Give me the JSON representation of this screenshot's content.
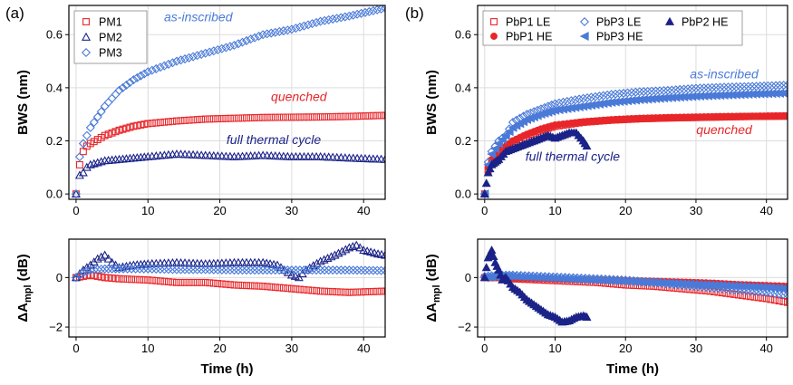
{
  "panels": {
    "a": {
      "label": "(a)"
    },
    "b": {
      "label": "(b)"
    }
  },
  "colors": {
    "red": "#e8262a",
    "navy": "#1b2388",
    "blue": "#4a7ad8",
    "lightblue": "#7aa2ea",
    "grid": "#dcdcdc"
  },
  "chart_data": [
    {
      "id": "a-top",
      "panel": "a",
      "type": "scatter",
      "title": "",
      "xlabel": "",
      "ylabel": "BWS (nm)",
      "xlim": [
        -1,
        43
      ],
      "ylim": [
        -0.02,
        0.71
      ],
      "xticks": [
        "0",
        "10",
        "20",
        "30",
        "40"
      ],
      "yticks": [
        "0.0",
        "0.2",
        "0.4",
        "0.6"
      ],
      "grid": true,
      "legend": {
        "position": "top-left",
        "entries": [
          "PM1",
          "PM2",
          "PM3"
        ]
      },
      "series": [
        {
          "name": "PM1",
          "color": "#e8262a",
          "marker": "square-open",
          "x": [
            0,
            0.5,
            1,
            1.5,
            2,
            4,
            6,
            8,
            10,
            14,
            18,
            22,
            26,
            30,
            34,
            38,
            43
          ],
          "y": [
            0.0,
            0.11,
            0.16,
            0.18,
            0.19,
            0.22,
            0.24,
            0.255,
            0.265,
            0.275,
            0.282,
            0.285,
            0.288,
            0.289,
            0.29,
            0.292,
            0.296
          ]
        },
        {
          "name": "PM2",
          "color": "#1b2388",
          "marker": "triangle-open",
          "x": [
            0,
            0.5,
            1,
            1.5,
            2,
            4,
            6,
            8,
            10,
            14,
            18,
            22,
            26,
            30,
            34,
            38,
            43
          ],
          "y": [
            0.0,
            0.07,
            0.08,
            0.1,
            0.11,
            0.125,
            0.13,
            0.135,
            0.14,
            0.15,
            0.145,
            0.14,
            0.145,
            0.14,
            0.14,
            0.135,
            0.13
          ]
        },
        {
          "name": "PM3",
          "color": "#4a7ad8",
          "marker": "diamond-open",
          "x": [
            0,
            0.5,
            1,
            1.5,
            2,
            4,
            6,
            8,
            10,
            14,
            18,
            22,
            26,
            30,
            34,
            38,
            43
          ],
          "y": [
            0.0,
            0.14,
            0.19,
            0.22,
            0.25,
            0.33,
            0.39,
            0.43,
            0.46,
            0.5,
            0.53,
            0.56,
            0.6,
            0.62,
            0.65,
            0.67,
            0.7
          ]
        }
      ],
      "annotations": [
        {
          "text": "as-inscribed",
          "x": 17,
          "y": 0.65,
          "color": "#4a7ad8"
        },
        {
          "text": "quenched",
          "x": 31,
          "y": 0.35,
          "color": "#e8262a"
        },
        {
          "text": "full thermal cycle",
          "x": 27.5,
          "y": 0.188,
          "color": "#1b2388"
        }
      ]
    },
    {
      "id": "a-bottom",
      "panel": "a",
      "type": "scatter",
      "title": "",
      "xlabel": "Time (h)",
      "ylabel": "ΔA",
      "ylabel_sub": "mpl",
      "ylabel_unit": " (dB)",
      "xlim": [
        -1,
        43
      ],
      "ylim": [
        -2.4,
        1.55
      ],
      "xticks": [
        "0",
        "10",
        "20",
        "30",
        "40"
      ],
      "yticks": [
        "−2",
        "0"
      ],
      "grid": true,
      "series": [
        {
          "name": "PM1",
          "color": "#e8262a",
          "marker": "square-open",
          "x": [
            0,
            1,
            2,
            4,
            6,
            10,
            14,
            18,
            22,
            26,
            30,
            34,
            38,
            43
          ],
          "y": [
            0.0,
            0.05,
            0.1,
            0.0,
            -0.05,
            -0.1,
            -0.2,
            -0.2,
            -0.3,
            -0.35,
            -0.45,
            -0.55,
            -0.6,
            -0.55
          ]
        },
        {
          "name": "PM2",
          "color": "#1b2388",
          "marker": "triangle-open",
          "x": [
            0,
            1,
            2,
            3,
            4,
            5,
            6,
            8,
            10,
            14,
            18,
            22,
            26,
            28,
            30,
            31,
            32,
            34,
            36,
            38,
            39,
            40,
            42,
            43
          ],
          "y": [
            0.0,
            0.3,
            0.5,
            0.75,
            0.9,
            0.6,
            0.4,
            0.5,
            0.55,
            0.6,
            0.55,
            0.6,
            0.6,
            0.5,
            0.1,
            0.0,
            0.3,
            0.65,
            0.9,
            1.2,
            1.3,
            1.1,
            0.95,
            0.9
          ]
        },
        {
          "name": "PM3",
          "color": "#4a7ad8",
          "marker": "diamond-open",
          "x": [
            0,
            1,
            2,
            4,
            6,
            10,
            14,
            18,
            22,
            26,
            30,
            34,
            38,
            43
          ],
          "y": [
            0.0,
            0.2,
            0.3,
            0.35,
            0.35,
            0.35,
            0.32,
            0.32,
            0.3,
            0.3,
            0.3,
            0.3,
            0.3,
            0.28
          ]
        }
      ]
    },
    {
      "id": "b-top",
      "panel": "b",
      "type": "scatter",
      "title": "",
      "xlabel": "",
      "ylabel": "BWS (nm)",
      "xlim": [
        -1,
        43
      ],
      "ylim": [
        -0.02,
        0.71
      ],
      "xticks": [
        "0",
        "10",
        "20",
        "30",
        "40"
      ],
      "yticks": [
        "0.0",
        "0.2",
        "0.4",
        "0.6"
      ],
      "grid": true,
      "legend": {
        "position": "top",
        "entries": [
          "PbP1 LE",
          "PbP3 LE",
          "PbP2 HE",
          "PbP1 HE",
          "PbP3 HE"
        ]
      },
      "series": [
        {
          "name": "PbP1 LE",
          "color": "#e8262a",
          "marker": "square-open",
          "x": [
            0,
            0.5,
            1,
            2,
            4,
            6,
            8,
            10,
            14,
            18,
            22,
            26,
            30,
            34,
            38,
            43
          ],
          "y": [
            0.0,
            0.09,
            0.12,
            0.15,
            0.19,
            0.22,
            0.24,
            0.255,
            0.27,
            0.278,
            0.283,
            0.286,
            0.288,
            0.29,
            0.292,
            0.293
          ]
        },
        {
          "name": "PbP1 HE",
          "color": "#e8262a",
          "marker": "circle-filled",
          "x": [
            0,
            0.5,
            1,
            2,
            4,
            6,
            8,
            10,
            14,
            18,
            22,
            26,
            30,
            34,
            38,
            43
          ],
          "y": [
            0.0,
            0.1,
            0.13,
            0.16,
            0.2,
            0.225,
            0.245,
            0.26,
            0.272,
            0.28,
            0.285,
            0.288,
            0.29,
            0.292,
            0.293,
            0.295
          ]
        },
        {
          "name": "PbP3 LE",
          "color": "#4a7ad8",
          "marker": "diamond-open",
          "x": [
            0,
            0.5,
            1,
            2,
            3,
            4,
            6,
            8,
            10,
            14,
            18,
            22,
            26,
            30,
            34,
            38,
            43
          ],
          "y": [
            0.0,
            0.12,
            0.16,
            0.2,
            0.22,
            0.27,
            0.3,
            0.32,
            0.34,
            0.36,
            0.375,
            0.385,
            0.39,
            0.398,
            0.402,
            0.405,
            0.41
          ]
        },
        {
          "name": "PbP3 HE",
          "color": "#4a7ad8",
          "marker": "triangle-left-filled",
          "x": [
            0,
            0.5,
            1,
            2,
            4,
            6,
            8,
            10,
            14,
            18,
            22,
            26,
            30,
            34,
            38,
            43
          ],
          "y": [
            0.0,
            0.11,
            0.15,
            0.19,
            0.25,
            0.28,
            0.3,
            0.315,
            0.33,
            0.345,
            0.355,
            0.362,
            0.368,
            0.372,
            0.376,
            0.38
          ]
        },
        {
          "name": "PbP2 HE",
          "color": "#1b2388",
          "marker": "triangle-filled",
          "x": [
            0,
            0.5,
            1,
            1.5,
            2,
            3,
            4,
            5,
            6,
            7,
            8,
            9,
            10,
            11,
            12,
            13,
            14,
            14.5
          ],
          "y": [
            0.0,
            0.08,
            0.11,
            0.12,
            0.13,
            0.16,
            0.17,
            0.18,
            0.19,
            0.2,
            0.21,
            0.22,
            0.21,
            0.22,
            0.23,
            0.23,
            0.2,
            0.18
          ]
        }
      ],
      "annotations": [
        {
          "text": "as-inscribed",
          "x": 34,
          "y": 0.435,
          "color": "#4a7ad8"
        },
        {
          "text": "quenched",
          "x": 34,
          "y": 0.225,
          "color": "#e8262a"
        },
        {
          "text": "full thermal cycle",
          "x": 12.5,
          "y": 0.125,
          "color": "#1b2388"
        }
      ]
    },
    {
      "id": "b-bottom",
      "panel": "b",
      "type": "scatter",
      "title": "",
      "xlabel": "Time (h)",
      "ylabel": "ΔA",
      "ylabel_sub": "mpl",
      "ylabel_unit": " (dB)",
      "xlim": [
        -1,
        43
      ],
      "ylim": [
        -2.4,
        1.55
      ],
      "xticks": [
        "0",
        "10",
        "20",
        "30",
        "40"
      ],
      "yticks": [
        "−2",
        "0"
      ],
      "grid": true,
      "series": [
        {
          "name": "PbP1 LE",
          "color": "#e8262a",
          "marker": "square-open",
          "x": [
            0,
            2,
            4,
            8,
            12,
            16,
            20,
            24,
            28,
            32,
            36,
            40,
            43
          ],
          "y": [
            0.0,
            0.0,
            -0.05,
            -0.1,
            -0.15,
            -0.2,
            -0.3,
            -0.35,
            -0.45,
            -0.55,
            -0.7,
            -0.85,
            -1.0
          ]
        },
        {
          "name": "PbP1 HE",
          "color": "#e8262a",
          "marker": "circle-filled",
          "x": [
            0,
            2,
            4,
            8,
            12,
            16,
            20,
            24,
            28,
            32,
            36,
            40,
            43
          ],
          "y": [
            0.0,
            0.0,
            -0.02,
            -0.05,
            -0.08,
            -0.1,
            -0.12,
            -0.15,
            -0.18,
            -0.22,
            -0.28,
            -0.32,
            -0.35
          ]
        },
        {
          "name": "PbP3 LE",
          "color": "#4a7ad8",
          "marker": "diamond-open",
          "x": [
            0,
            2,
            4,
            8,
            12,
            16,
            20,
            24,
            28,
            32,
            36,
            40,
            43
          ],
          "y": [
            0.05,
            0.1,
            0.1,
            0.05,
            0.0,
            -0.05,
            -0.1,
            -0.2,
            -0.3,
            -0.4,
            -0.5,
            -0.6,
            -0.7
          ]
        },
        {
          "name": "PbP3 HE",
          "color": "#4a7ad8",
          "marker": "triangle-left-filled",
          "x": [
            0,
            2,
            4,
            8,
            12,
            16,
            20,
            24,
            28,
            32,
            36,
            40,
            43
          ],
          "y": [
            0.0,
            0.05,
            0.05,
            0.0,
            -0.05,
            -0.1,
            -0.15,
            -0.2,
            -0.25,
            -0.3,
            -0.35,
            -0.4,
            -0.45
          ]
        },
        {
          "name": "PbP2 HE",
          "color": "#1b2388",
          "marker": "triangle-filled",
          "x": [
            0,
            0.5,
            1,
            1.5,
            2,
            2.5,
            3,
            4,
            5,
            6,
            7,
            8,
            9,
            10,
            11,
            12,
            13,
            14,
            14.5
          ],
          "y": [
            0.0,
            0.8,
            1.1,
            0.6,
            0.3,
            -0.1,
            0.0,
            -0.4,
            -0.6,
            -0.9,
            -1.1,
            -1.3,
            -1.5,
            -1.6,
            -1.8,
            -1.75,
            -1.6,
            -1.55,
            -1.6
          ]
        }
      ]
    }
  ]
}
